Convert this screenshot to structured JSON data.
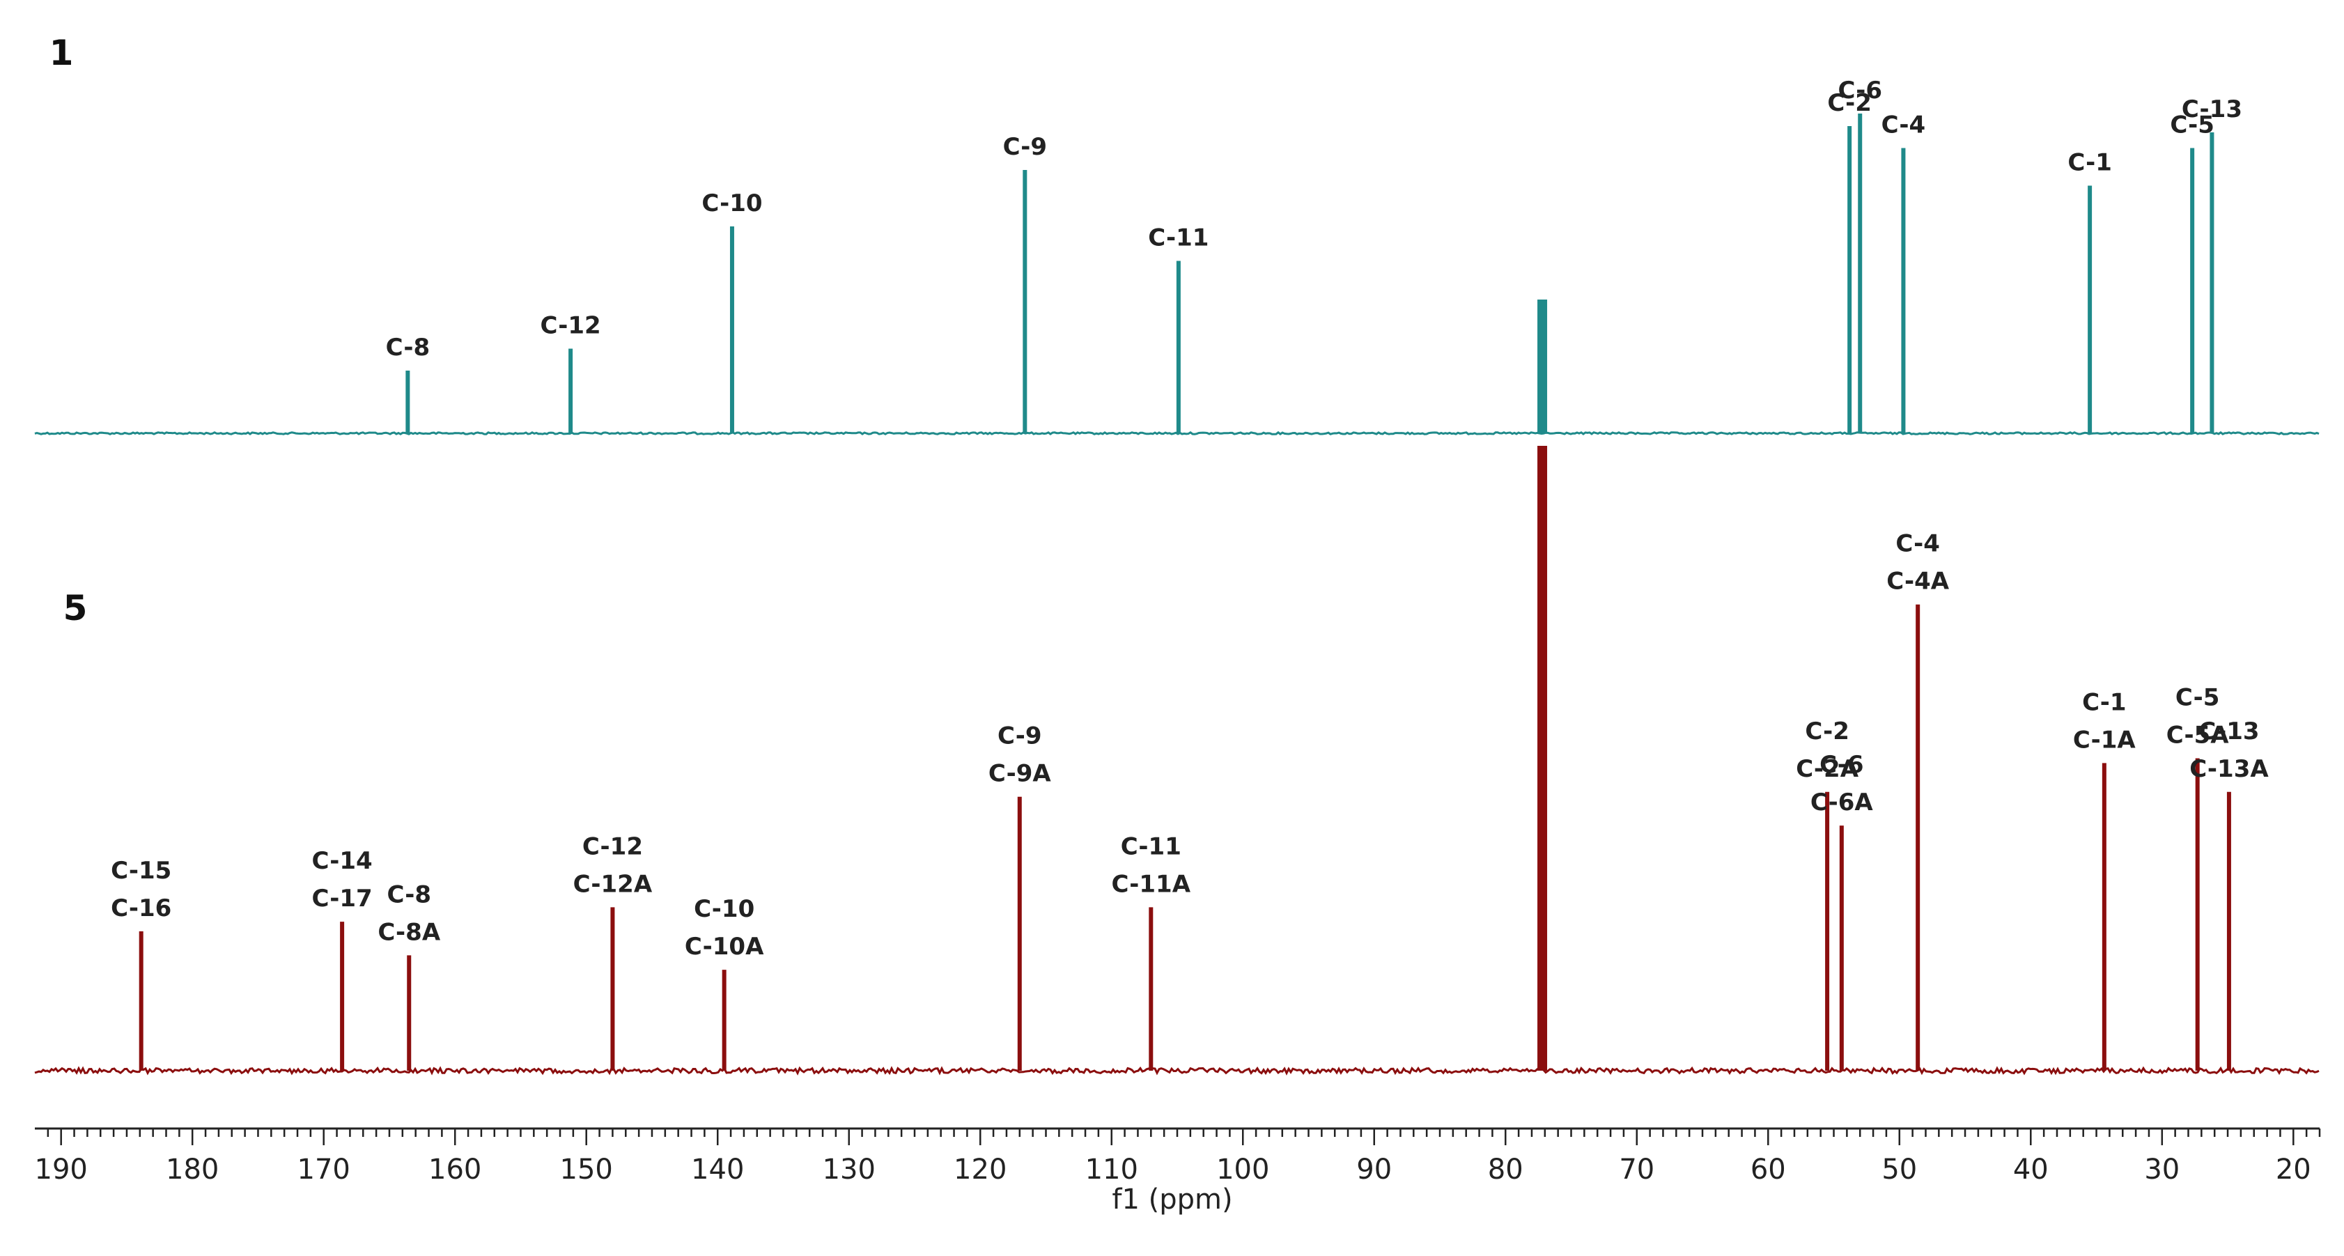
{
  "chart_data": {
    "type": "line",
    "title": "",
    "xlabel": "f1 (ppm)",
    "ylabel": "",
    "xlim": [
      192,
      18
    ],
    "x_reversed": true,
    "x_ticks": [
      190,
      180,
      170,
      160,
      150,
      140,
      130,
      120,
      110,
      100,
      90,
      80,
      70,
      60,
      50,
      40,
      30,
      20
    ],
    "grid": false,
    "solvent_peak": {
      "ppm": 77.2,
      "note": "CDCl3 (unlabeled)"
    },
    "spectra": [
      {
        "name": "1",
        "color": "#1f8a8a",
        "peaks": [
          {
            "ppm": 163.6,
            "height": 0.2,
            "labels": [
              "C-8"
            ]
          },
          {
            "ppm": 151.2,
            "height": 0.27,
            "labels": [
              "C-12"
            ]
          },
          {
            "ppm": 138.9,
            "height": 0.66,
            "labels": [
              "C-10"
            ]
          },
          {
            "ppm": 116.6,
            "height": 0.84,
            "labels": [
              "C-9"
            ]
          },
          {
            "ppm": 104.9,
            "height": 0.55,
            "labels": [
              "C-11"
            ]
          },
          {
            "ppm": 53.8,
            "height": 0.98,
            "labels": [
              "C-2"
            ]
          },
          {
            "ppm": 53.0,
            "height": 1.02,
            "labels": [
              "C-6"
            ]
          },
          {
            "ppm": 49.7,
            "height": 0.91,
            "labels": [
              "C-4"
            ]
          },
          {
            "ppm": 35.5,
            "height": 0.79,
            "labels": [
              "C-1"
            ]
          },
          {
            "ppm": 27.7,
            "height": 0.91,
            "labels": [
              "C-5"
            ]
          },
          {
            "ppm": 26.2,
            "height": 0.96,
            "labels": [
              "C-13"
            ]
          }
        ]
      },
      {
        "name": "5",
        "color": "#8b0e0e",
        "peaks": [
          {
            "ppm": 183.9,
            "height": 0.29,
            "labels": [
              "C-15",
              "C-16"
            ]
          },
          {
            "ppm": 168.6,
            "height": 0.31,
            "labels": [
              "C-14",
              "C-17"
            ]
          },
          {
            "ppm": 163.5,
            "height": 0.24,
            "labels": [
              "C-8",
              "C-8A"
            ]
          },
          {
            "ppm": 148.0,
            "height": 0.34,
            "labels": [
              "C-12",
              "C-12A"
            ]
          },
          {
            "ppm": 139.5,
            "height": 0.21,
            "labels": [
              "C-10",
              "C-10A"
            ]
          },
          {
            "ppm": 117.0,
            "height": 0.57,
            "labels": [
              "C-9",
              "C-9A"
            ]
          },
          {
            "ppm": 107.0,
            "height": 0.34,
            "labels": [
              "C-11",
              "C-11A"
            ]
          },
          {
            "ppm": 55.5,
            "height": 0.58,
            "labels": [
              "C-2",
              "C-2A"
            ]
          },
          {
            "ppm": 54.4,
            "height": 0.51,
            "labels": [
              "C-6",
              "C-6A"
            ]
          },
          {
            "ppm": 48.6,
            "height": 0.97,
            "labels": [
              "C-4",
              "C-4A"
            ]
          },
          {
            "ppm": 34.4,
            "height": 0.64,
            "labels": [
              "C-1",
              "C-1A"
            ]
          },
          {
            "ppm": 27.3,
            "height": 0.65,
            "labels": [
              "C-5",
              "C-5A"
            ]
          },
          {
            "ppm": 24.9,
            "height": 0.58,
            "labels": [
              "C-13",
              "C-13A"
            ]
          }
        ]
      }
    ]
  }
}
